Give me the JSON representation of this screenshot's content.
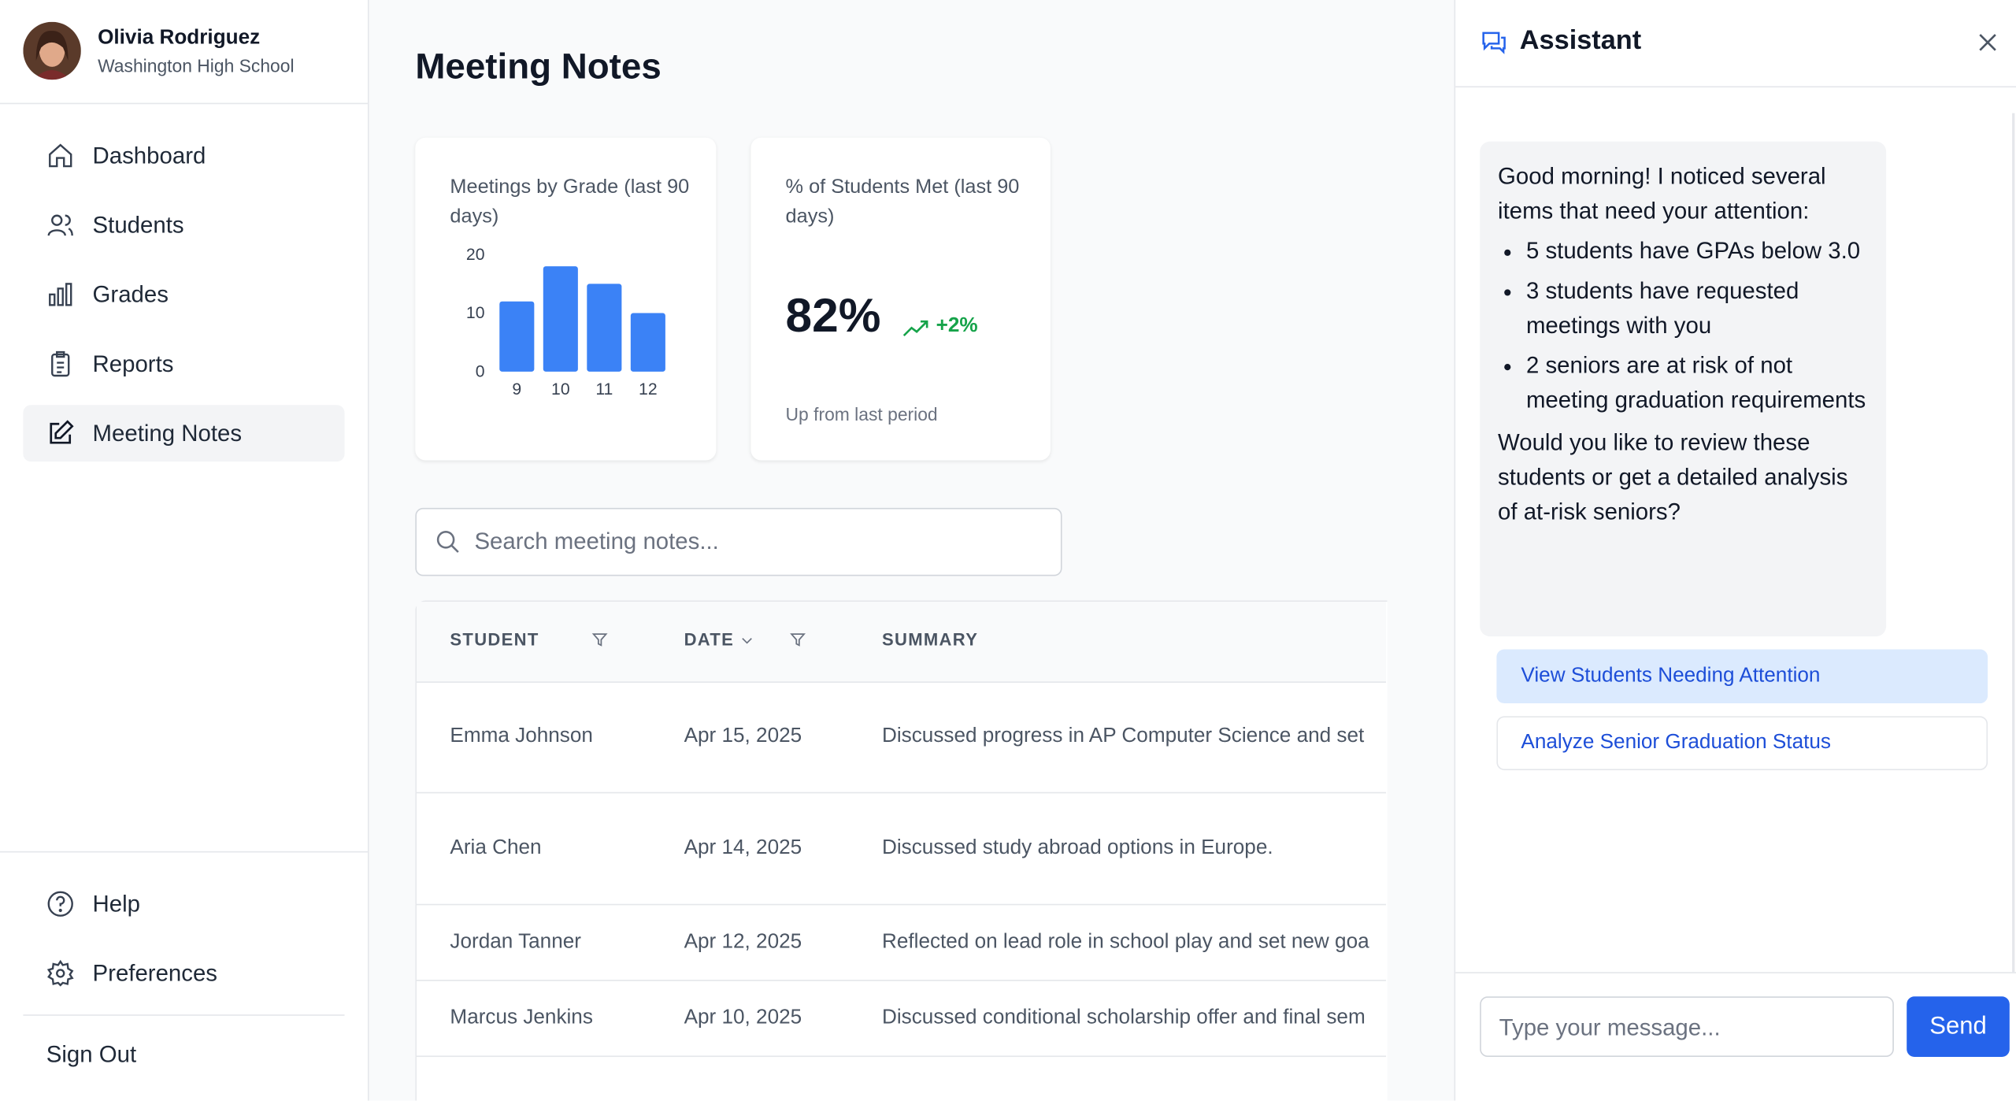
{
  "user": {
    "name": "Olivia Rodriguez",
    "school": "Washington High School"
  },
  "nav": [
    "Dashboard",
    "Students",
    "Grades",
    "Reports",
    "Meeting Notes"
  ],
  "footer_nav": [
    "Help",
    "Preferences"
  ],
  "sign_out": "Sign Out",
  "page_title": "Meeting Notes",
  "grade_chart": {
    "type": "bar",
    "title": "Meetings by Grade (last 90 days)",
    "categories": [
      "9",
      "10",
      "11",
      "12"
    ],
    "values": [
      12,
      18,
      15,
      10
    ],
    "color": "#3b82f6",
    "ylim": [
      0,
      20
    ],
    "yticks": [
      0,
      10,
      20
    ]
  },
  "metric": {
    "title": "% of Students Met (last 90 days)",
    "value": "82%",
    "change": "+2%",
    "note": "Up from last period"
  },
  "search_placeholder": "Search meeting notes...",
  "table": {
    "columns": [
      "STUDENT",
      "DATE",
      "SUMMARY"
    ],
    "rows": [
      [
        "Emma Johnson",
        "Apr 15, 2025",
        "Discussed progress in AP Computer Science and set"
      ],
      [
        "Aria Chen",
        "Apr 14, 2025",
        "Discussed study abroad options in Europe."
      ],
      [
        "Jordan Tanner",
        "Apr 12, 2025",
        "Reflected on lead role in school play and set new goa"
      ],
      [
        "Marcus Jenkins",
        "Apr 10, 2025",
        "Discussed conditional scholarship offer and final sem"
      ]
    ]
  },
  "assistant": {
    "title": "Assistant",
    "greeting": "Good morning! I noticed several items that need your attention:",
    "items": [
      "5 students have GPAs below 3.0",
      "3 students have requested meetings with you",
      "2 seniors are at risk of not meeting graduation requirements"
    ],
    "question": "Would you like to review these students or get a detailed analysis of at-risk seniors?",
    "actions": [
      "View Students Needing Attention",
      "Analyze Senior Graduation Status"
    ],
    "input_placeholder": "Type your message...",
    "send": "Send"
  }
}
